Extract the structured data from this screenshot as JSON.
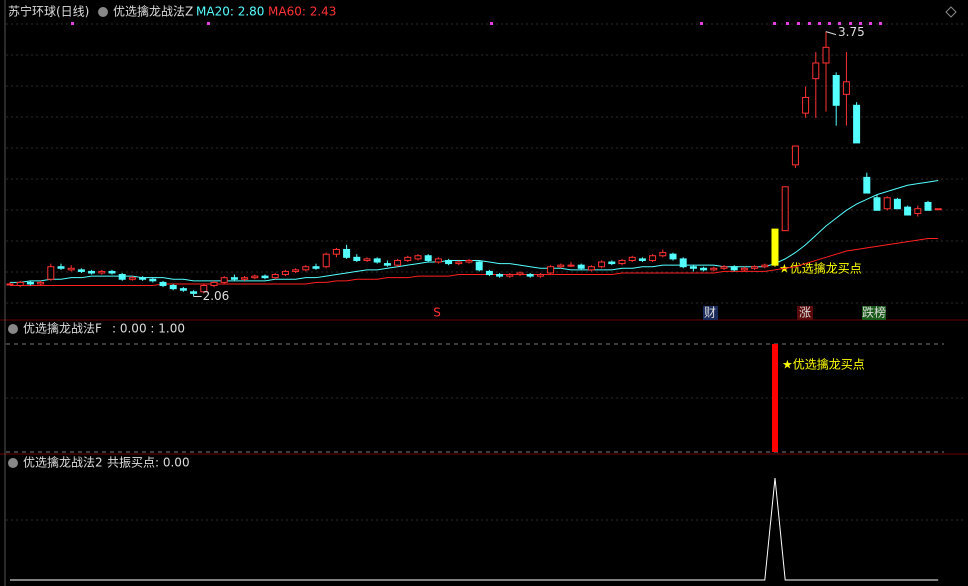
{
  "chart_data": [
    {
      "type": "candlestick",
      "title": "苏宁环球(日线)",
      "indicator": "优选擒龙战法Z",
      "ma20_label": "MA20: 2.80",
      "ma60_label": "MA60: 2.43",
      "signal_text": "★优选擒龙买点",
      "max_label": 3.75,
      "min_label": 2.06,
      "up_color": "#ff3232",
      "down_color": "#54ffff",
      "signal_color": "#ffff00",
      "ylim": [
        1.91,
        3.92
      ],
      "ohlc": [
        [
          2.14,
          2.15,
          2.13,
          2.14
        ],
        [
          2.13,
          2.16,
          2.12,
          2.15
        ],
        [
          2.15,
          2.16,
          2.13,
          2.14
        ],
        [
          2.14,
          2.16,
          2.13,
          2.15
        ],
        [
          2.17,
          2.27,
          2.16,
          2.25
        ],
        [
          2.25,
          2.27,
          2.23,
          2.24
        ],
        [
          2.23,
          2.26,
          2.22,
          2.24
        ],
        [
          2.23,
          2.24,
          2.21,
          2.22
        ],
        [
          2.22,
          2.23,
          2.2,
          2.21
        ],
        [
          2.21,
          2.23,
          2.2,
          2.22
        ],
        [
          2.22,
          2.23,
          2.2,
          2.21
        ],
        [
          2.2,
          2.21,
          2.16,
          2.17
        ],
        [
          2.17,
          2.19,
          2.16,
          2.18
        ],
        [
          2.18,
          2.19,
          2.16,
          2.17
        ],
        [
          2.17,
          2.18,
          2.15,
          2.16
        ],
        [
          2.15,
          2.16,
          2.12,
          2.13
        ],
        [
          2.13,
          2.14,
          2.1,
          2.11
        ],
        [
          2.11,
          2.12,
          2.09,
          2.1
        ],
        [
          2.09,
          2.1,
          2.06,
          2.08
        ],
        [
          2.09,
          2.14,
          2.08,
          2.13
        ],
        [
          2.13,
          2.16,
          2.12,
          2.15
        ],
        [
          2.15,
          2.19,
          2.14,
          2.18
        ],
        [
          2.18,
          2.2,
          2.16,
          2.17
        ],
        [
          2.17,
          2.19,
          2.16,
          2.18
        ],
        [
          2.18,
          2.2,
          2.17,
          2.19
        ],
        [
          2.19,
          2.2,
          2.17,
          2.18
        ],
        [
          2.18,
          2.21,
          2.17,
          2.2
        ],
        [
          2.2,
          2.23,
          2.19,
          2.22
        ],
        [
          2.22,
          2.24,
          2.21,
          2.23
        ],
        [
          2.23,
          2.26,
          2.22,
          2.25
        ],
        [
          2.25,
          2.27,
          2.23,
          2.24
        ],
        [
          2.25,
          2.34,
          2.24,
          2.33
        ],
        [
          2.33,
          2.37,
          2.31,
          2.36
        ],
        [
          2.36,
          2.39,
          2.3,
          2.31
        ],
        [
          2.31,
          2.33,
          2.28,
          2.29
        ],
        [
          2.29,
          2.31,
          2.28,
          2.3
        ],
        [
          2.3,
          2.31,
          2.27,
          2.28
        ],
        [
          2.27,
          2.29,
          2.25,
          2.26
        ],
        [
          2.26,
          2.3,
          2.25,
          2.29
        ],
        [
          2.29,
          2.32,
          2.28,
          2.31
        ],
        [
          2.3,
          2.33,
          2.29,
          2.32
        ],
        [
          2.32,
          2.33,
          2.28,
          2.29
        ],
        [
          2.28,
          2.31,
          2.27,
          2.3
        ],
        [
          2.29,
          2.3,
          2.26,
          2.27
        ],
        [
          2.27,
          2.29,
          2.26,
          2.28
        ],
        [
          2.28,
          2.3,
          2.27,
          2.29
        ],
        [
          2.28,
          2.29,
          2.22,
          2.23
        ],
        [
          2.22,
          2.23,
          2.19,
          2.2
        ],
        [
          2.2,
          2.21,
          2.18,
          2.19
        ],
        [
          2.19,
          2.21,
          2.18,
          2.2
        ],
        [
          2.2,
          2.22,
          2.19,
          2.21
        ],
        [
          2.2,
          2.21,
          2.18,
          2.19
        ],
        [
          2.19,
          2.21,
          2.18,
          2.2
        ],
        [
          2.21,
          2.26,
          2.2,
          2.25
        ],
        [
          2.25,
          2.27,
          2.24,
          2.26
        ],
        [
          2.26,
          2.28,
          2.25,
          2.26
        ],
        [
          2.26,
          2.27,
          2.23,
          2.24
        ],
        [
          2.23,
          2.26,
          2.22,
          2.25
        ],
        [
          2.25,
          2.29,
          2.24,
          2.28
        ],
        [
          2.28,
          2.29,
          2.26,
          2.27
        ],
        [
          2.27,
          2.3,
          2.26,
          2.29
        ],
        [
          2.29,
          2.32,
          2.28,
          2.31
        ],
        [
          2.3,
          2.31,
          2.28,
          2.29
        ],
        [
          2.29,
          2.33,
          2.28,
          2.32
        ],
        [
          2.32,
          2.36,
          2.31,
          2.34
        ],
        [
          2.33,
          2.34,
          2.29,
          2.3
        ],
        [
          2.3,
          2.31,
          2.24,
          2.25
        ],
        [
          2.25,
          2.26,
          2.22,
          2.24
        ],
        [
          2.24,
          2.25,
          2.22,
          2.23
        ],
        [
          2.23,
          2.25,
          2.22,
          2.24
        ],
        [
          2.24,
          2.26,
          2.23,
          2.25
        ],
        [
          2.25,
          2.26,
          2.22,
          2.23
        ],
        [
          2.23,
          2.25,
          2.22,
          2.24
        ],
        [
          2.24,
          2.26,
          2.23,
          2.25
        ],
        [
          2.25,
          2.27,
          2.24,
          2.26
        ],
        [
          2.26,
          2.49,
          2.25,
          2.49
        ],
        [
          2.48,
          2.76,
          2.48,
          2.76
        ],
        [
          2.9,
          3.02,
          2.88,
          3.02
        ],
        [
          3.23,
          3.4,
          3.2,
          3.33
        ],
        [
          3.45,
          3.62,
          3.2,
          3.55
        ],
        [
          3.55,
          3.75,
          3.24,
          3.65
        ],
        [
          3.47,
          3.49,
          3.15,
          3.28
        ],
        [
          3.35,
          3.62,
          3.15,
          3.43
        ],
        [
          3.28,
          3.3,
          3.04,
          3.04
        ],
        [
          2.82,
          2.85,
          2.72,
          2.72
        ],
        [
          2.69,
          2.71,
          2.61,
          2.61
        ],
        [
          2.62,
          2.7,
          2.61,
          2.69
        ],
        [
          2.68,
          2.69,
          2.62,
          2.62
        ],
        [
          2.63,
          2.64,
          2.58,
          2.58
        ],
        [
          2.59,
          2.64,
          2.57,
          2.62
        ],
        [
          2.66,
          2.67,
          2.61,
          2.61
        ],
        [
          2.62,
          2.62,
          2.62,
          2.62
        ]
      ],
      "series": [
        {
          "name": "MA20",
          "color": "#54ffff",
          "values": [
            2.15,
            2.15,
            2.16,
            2.16,
            2.17,
            2.17,
            2.18,
            2.18,
            2.19,
            2.19,
            2.19,
            2.19,
            2.19,
            2.18,
            2.18,
            2.18,
            2.17,
            2.17,
            2.16,
            2.16,
            2.16,
            2.16,
            2.16,
            2.16,
            2.16,
            2.16,
            2.17,
            2.17,
            2.17,
            2.18,
            2.18,
            2.19,
            2.2,
            2.21,
            2.22,
            2.23,
            2.23,
            2.24,
            2.25,
            2.26,
            2.27,
            2.28,
            2.28,
            2.29,
            2.29,
            2.29,
            2.29,
            2.28,
            2.27,
            2.27,
            2.26,
            2.25,
            2.24,
            2.24,
            2.24,
            2.23,
            2.23,
            2.23,
            2.23,
            2.23,
            2.24,
            2.24,
            2.25,
            2.25,
            2.26,
            2.26,
            2.26,
            2.26,
            2.26,
            2.26,
            2.25,
            2.25,
            2.25,
            2.25,
            2.25,
            2.27,
            2.3,
            2.34,
            2.39,
            2.45,
            2.51,
            2.56,
            2.61,
            2.65,
            2.68,
            2.71,
            2.73,
            2.75,
            2.77,
            2.78,
            2.79,
            2.8
          ]
        },
        {
          "name": "MA60",
          "color": "#ff2020",
          "values": [
            2.13,
            2.13,
            2.13,
            2.13,
            2.13,
            2.13,
            2.13,
            2.13,
            2.13,
            2.13,
            2.13,
            2.13,
            2.13,
            2.13,
            2.13,
            2.14,
            2.14,
            2.14,
            2.14,
            2.14,
            2.14,
            2.14,
            2.14,
            2.14,
            2.14,
            2.14,
            2.14,
            2.14,
            2.14,
            2.14,
            2.15,
            2.15,
            2.16,
            2.16,
            2.17,
            2.17,
            2.17,
            2.18,
            2.18,
            2.18,
            2.19,
            2.19,
            2.19,
            2.19,
            2.2,
            2.2,
            2.2,
            2.2,
            2.2,
            2.2,
            2.2,
            2.2,
            2.2,
            2.2,
            2.2,
            2.2,
            2.2,
            2.2,
            2.2,
            2.2,
            2.21,
            2.21,
            2.21,
            2.21,
            2.21,
            2.21,
            2.21,
            2.21,
            2.21,
            2.21,
            2.22,
            2.22,
            2.22,
            2.22,
            2.22,
            2.23,
            2.24,
            2.25,
            2.27,
            2.29,
            2.31,
            2.33,
            2.35,
            2.36,
            2.37,
            2.38,
            2.39,
            2.4,
            2.41,
            2.42,
            2.43,
            2.43
          ]
        }
      ],
      "events": [
        "S",
        "财",
        "涨",
        "跌榜"
      ]
    },
    {
      "type": "bar",
      "title": "优选擒龙战法F",
      "readout": ": 0.00 : 1.00",
      "color": "#ff0000",
      "ylim": [
        0,
        1
      ],
      "values": [
        0,
        0,
        0,
        0,
        0,
        0,
        0,
        0,
        0,
        0,
        0,
        0,
        0,
        0,
        0,
        0,
        0,
        0,
        0,
        0,
        0,
        0,
        0,
        0,
        0,
        0,
        0,
        0,
        0,
        0,
        0,
        0,
        0,
        0,
        0,
        0,
        0,
        0,
        0,
        0,
        0,
        0,
        0,
        0,
        0,
        0,
        0,
        0,
        0,
        0,
        0,
        0,
        0,
        0,
        0,
        0,
        0,
        0,
        0,
        0,
        0,
        0,
        0,
        0,
        0,
        0,
        0,
        0,
        0,
        0,
        0,
        0,
        0,
        0,
        0,
        1,
        0,
        0,
        0,
        0,
        0,
        0,
        0,
        0,
        0,
        0,
        0,
        0,
        0,
        0,
        0,
        0
      ]
    },
    {
      "type": "line",
      "title": "优选擒龙战法2",
      "readout": "共振买点: 0.00",
      "color": "#ffffff",
      "ylim": [
        0,
        1
      ],
      "values": [
        0,
        0,
        0,
        0,
        0,
        0,
        0,
        0,
        0,
        0,
        0,
        0,
        0,
        0,
        0,
        0,
        0,
        0,
        0,
        0,
        0,
        0,
        0,
        0,
        0,
        0,
        0,
        0,
        0,
        0,
        0,
        0,
        0,
        0,
        0,
        0,
        0,
        0,
        0,
        0,
        0,
        0,
        0,
        0,
        0,
        0,
        0,
        0,
        0,
        0,
        0,
        0,
        0,
        0,
        0,
        0,
        0,
        0,
        0,
        0,
        0,
        0,
        0,
        0,
        0,
        0,
        0,
        0,
        0,
        0,
        0,
        0,
        0,
        0,
        0,
        1,
        0,
        0,
        0,
        0,
        0,
        0,
        0,
        0,
        0,
        0,
        0,
        0,
        0,
        0,
        0,
        0
      ]
    }
  ]
}
